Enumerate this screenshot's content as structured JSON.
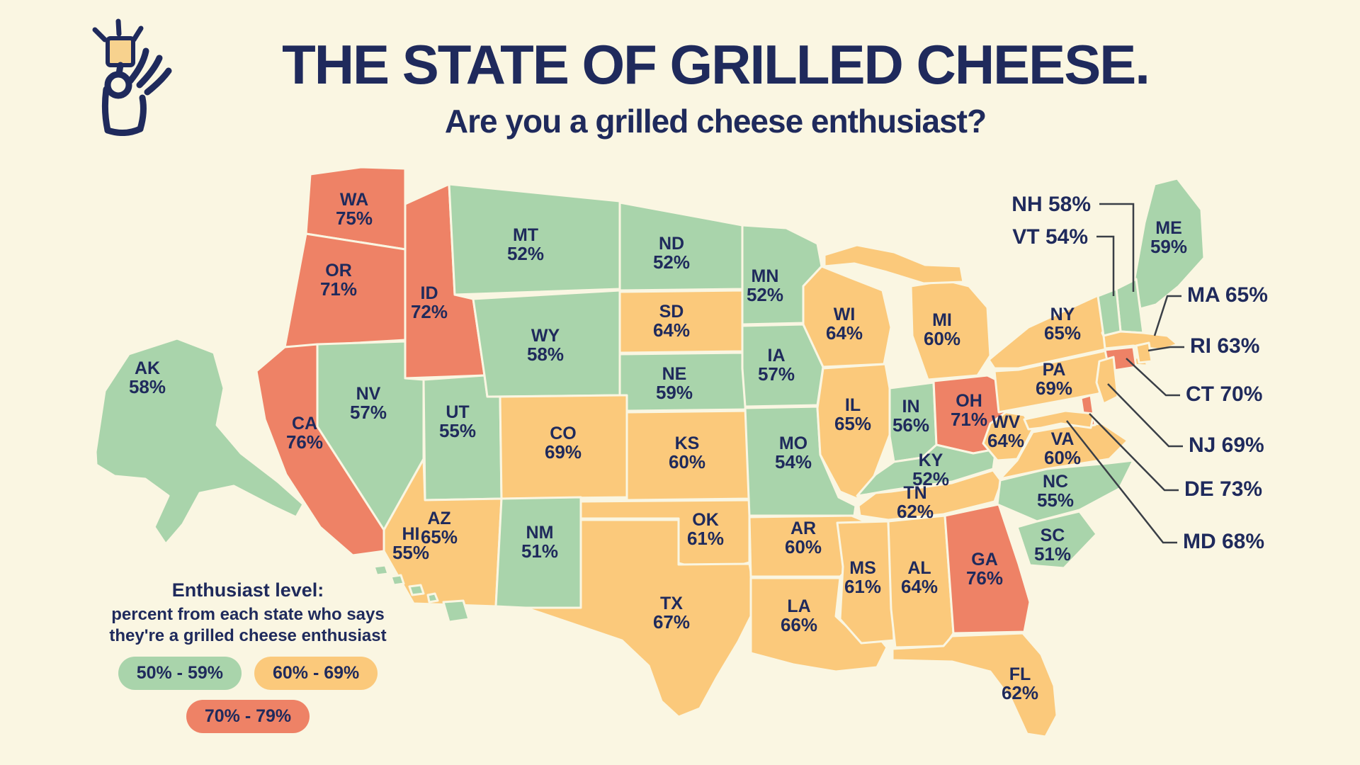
{
  "title": "THE STATE OF GRILLED CHEESE.",
  "subtitle": "Are you a grilled cheese enthusiast?",
  "logo": {
    "icon": "hand-holding-grilled-cheese-icon"
  },
  "colors": {
    "background": "#FAF6E2",
    "navy": "#1F2A5C",
    "green": "#A9D4AB",
    "orange": "#FBC97B",
    "red": "#EE8266",
    "callout_line": "#3A3F47"
  },
  "legend": {
    "title": "Enthusiast level:",
    "description_line1": "percent from each state who says",
    "description_line2": "they're a grilled cheese enthusiast",
    "buckets": [
      {
        "label": "50% - 59%",
        "color_key": "green"
      },
      {
        "label": "60% - 69%",
        "color_key": "orange"
      },
      {
        "label": "70% - 79%",
        "color_key": "red"
      }
    ]
  },
  "chart_data": {
    "type": "heatmap",
    "subtype": "us-state-choropleth",
    "title": "THE STATE OF GRILLED CHEESE.",
    "subtitle": "Are you a grilled cheese enthusiast?",
    "unit": "%",
    "value_range": [
      50,
      79
    ],
    "legend_position": "bottom-left",
    "buckets": [
      {
        "range": "50% - 59%",
        "color": "#A9D4AB"
      },
      {
        "range": "60% - 69%",
        "color": "#FBC97B"
      },
      {
        "range": "70% - 79%",
        "color": "#EE8266"
      }
    ],
    "states": [
      {
        "abbr": "WA",
        "value": 75
      },
      {
        "abbr": "OR",
        "value": 71
      },
      {
        "abbr": "CA",
        "value": 76
      },
      {
        "abbr": "ID",
        "value": 72
      },
      {
        "abbr": "NV",
        "value": 57
      },
      {
        "abbr": "UT",
        "value": 55
      },
      {
        "abbr": "AZ",
        "value": 65
      },
      {
        "abbr": "MT",
        "value": 52
      },
      {
        "abbr": "WY",
        "value": 58
      },
      {
        "abbr": "CO",
        "value": 69
      },
      {
        "abbr": "NM",
        "value": 51
      },
      {
        "abbr": "ND",
        "value": 52
      },
      {
        "abbr": "SD",
        "value": 64
      },
      {
        "abbr": "NE",
        "value": 59
      },
      {
        "abbr": "KS",
        "value": 60
      },
      {
        "abbr": "OK",
        "value": 61
      },
      {
        "abbr": "TX",
        "value": 67
      },
      {
        "abbr": "MN",
        "value": 52
      },
      {
        "abbr": "IA",
        "value": 57
      },
      {
        "abbr": "MO",
        "value": 54
      },
      {
        "abbr": "AR",
        "value": 60
      },
      {
        "abbr": "LA",
        "value": 66
      },
      {
        "abbr": "WI",
        "value": 64
      },
      {
        "abbr": "IL",
        "value": 65
      },
      {
        "abbr": "MI",
        "value": 60
      },
      {
        "abbr": "IN",
        "value": 56
      },
      {
        "abbr": "OH",
        "value": 71
      },
      {
        "abbr": "KY",
        "value": 52
      },
      {
        "abbr": "TN",
        "value": 62
      },
      {
        "abbr": "MS",
        "value": 61
      },
      {
        "abbr": "AL",
        "value": 64
      },
      {
        "abbr": "GA",
        "value": 76
      },
      {
        "abbr": "FL",
        "value": 62
      },
      {
        "abbr": "SC",
        "value": 51
      },
      {
        "abbr": "NC",
        "value": 55
      },
      {
        "abbr": "VA",
        "value": 60
      },
      {
        "abbr": "WV",
        "value": 64
      },
      {
        "abbr": "PA",
        "value": 69
      },
      {
        "abbr": "NY",
        "value": 65
      },
      {
        "abbr": "ME",
        "value": 59
      },
      {
        "abbr": "NH",
        "value": 58
      },
      {
        "abbr": "VT",
        "value": 54
      },
      {
        "abbr": "MA",
        "value": 65
      },
      {
        "abbr": "RI",
        "value": 63
      },
      {
        "abbr": "CT",
        "value": 70
      },
      {
        "abbr": "NJ",
        "value": 69
      },
      {
        "abbr": "DE",
        "value": 73
      },
      {
        "abbr": "MD",
        "value": 68
      },
      {
        "abbr": "AK",
        "value": 58
      },
      {
        "abbr": "HI",
        "value": 55
      }
    ],
    "callout_states": [
      "NH",
      "VT",
      "MA",
      "RI",
      "CT",
      "NJ",
      "DE",
      "MD"
    ]
  }
}
